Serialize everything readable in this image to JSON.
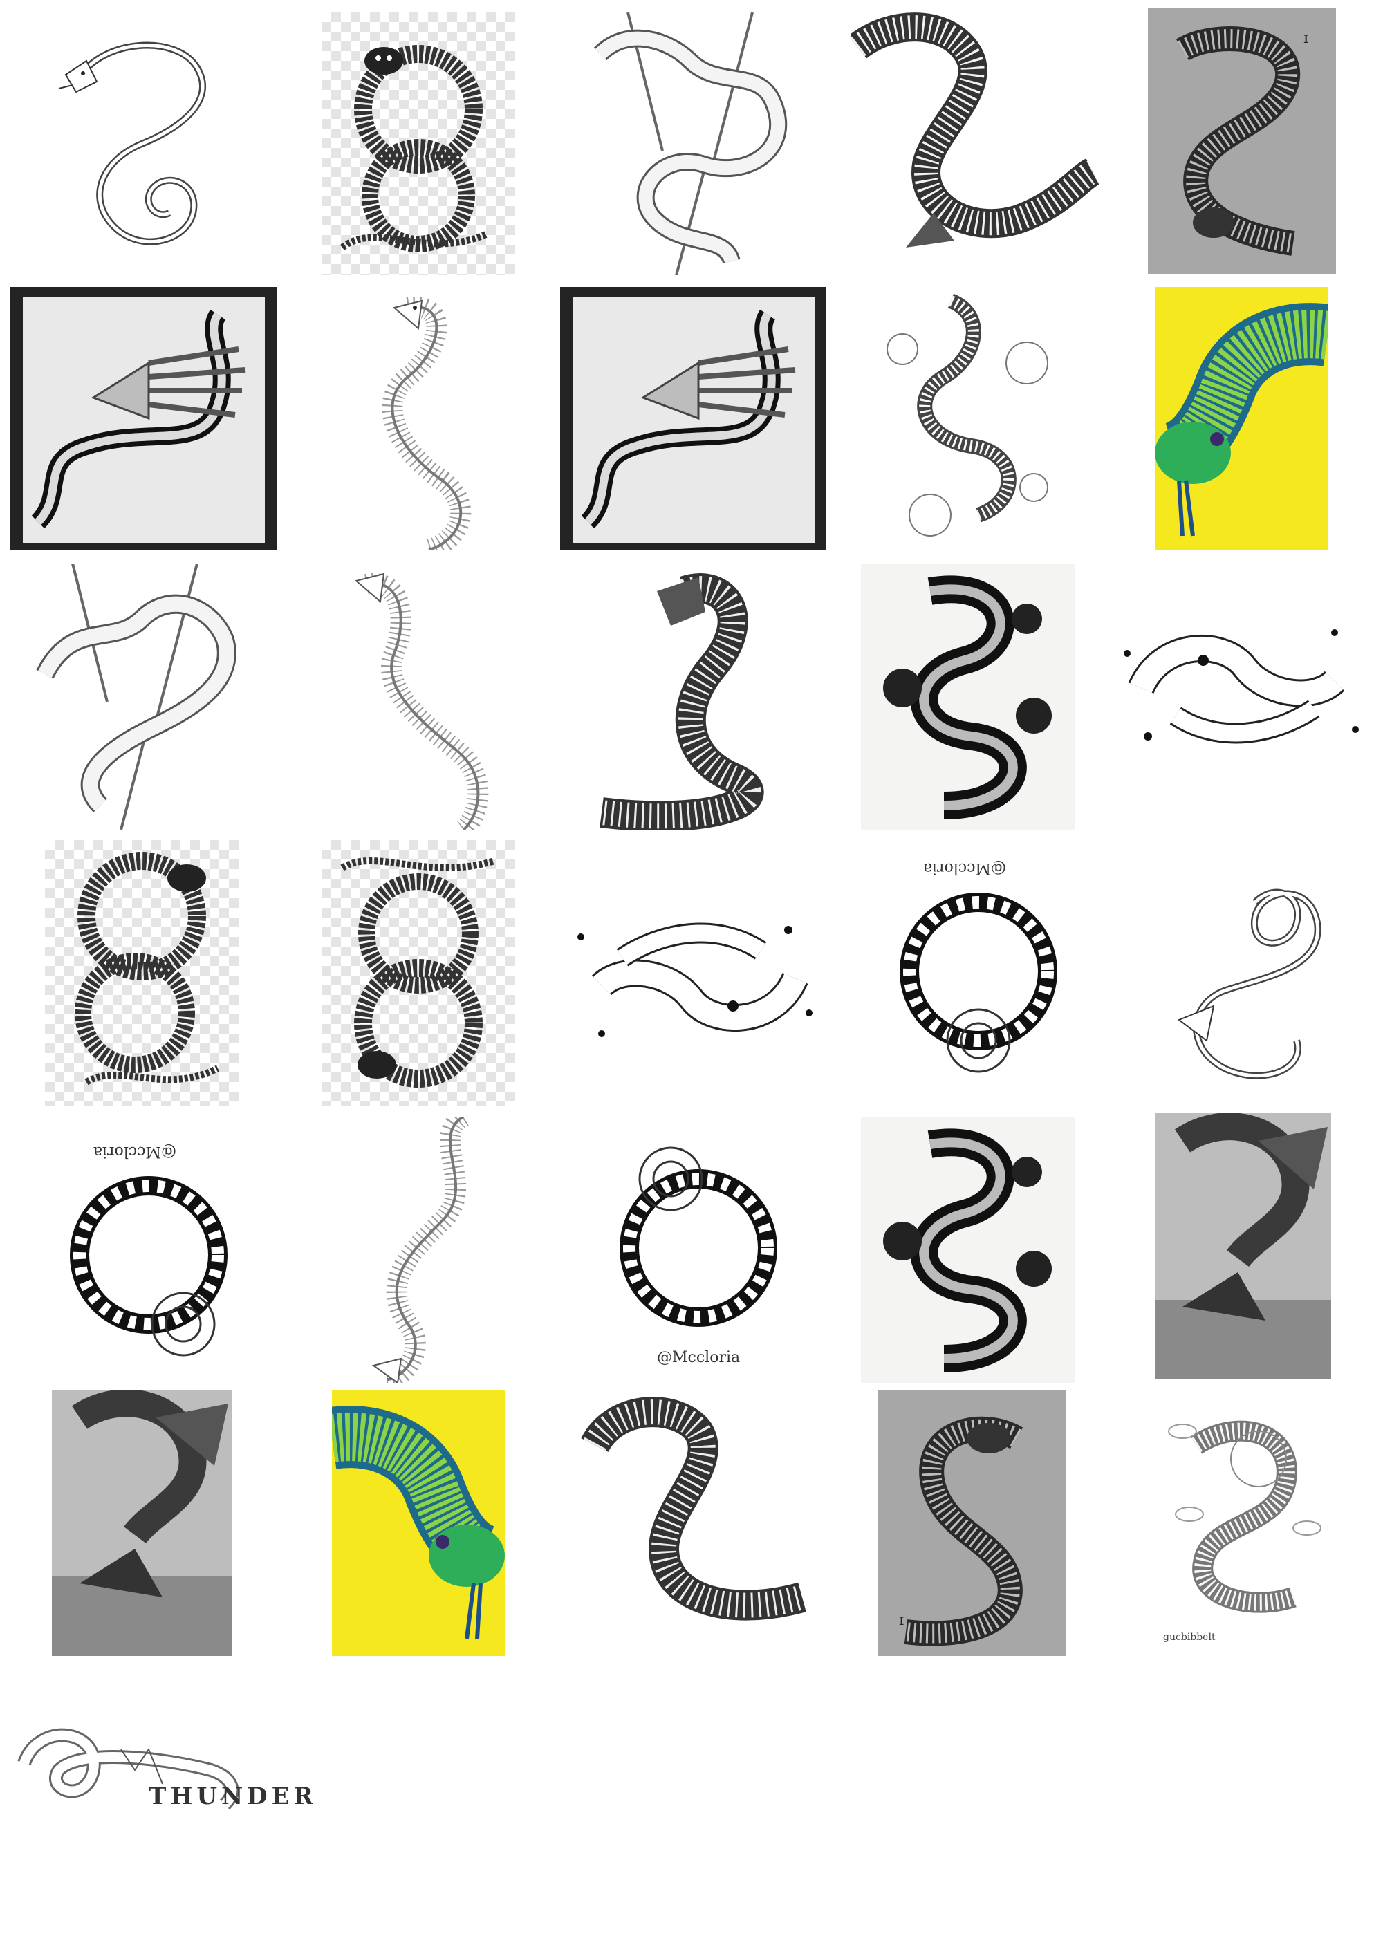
{
  "gallery": {
    "tiles": [
      {
        "subject": "snake-spiral-sketch"
      },
      {
        "subject": "snake-ouroboros-transparent"
      },
      {
        "subject": "snakes-on-branches"
      },
      {
        "subject": "cobra-s-curve"
      },
      {
        "subject": "snake-grey-paper"
      },
      {
        "subject": "snake-skeleton-hands"
      },
      {
        "subject": "snake-skeleton-lineart"
      },
      {
        "subject": "snake-skeleton-hands-copy"
      },
      {
        "subject": "snake-flowers"
      },
      {
        "subject": "green-snake-yellow"
      },
      {
        "subject": "snakes-on-branches-2"
      },
      {
        "subject": "snake-skeleton-lineart-2"
      },
      {
        "subject": "cobra-striking"
      },
      {
        "subject": "snake-black-roses"
      },
      {
        "subject": "snake-minimal-dots"
      },
      {
        "subject": "snake-ouroboros-2"
      },
      {
        "subject": "snake-ouroboros-3"
      },
      {
        "subject": "snake-minimal-dots-2"
      },
      {
        "subject": "snake-roses-circle"
      },
      {
        "subject": "snake-spiral-sketch-2"
      },
      {
        "subject": "snake-roses-circle-2"
      },
      {
        "subject": "snake-skeleton-lineart-3"
      },
      {
        "subject": "snake-roses-circle-3"
      },
      {
        "subject": "snake-black-roses-2"
      },
      {
        "subject": "winged-snake-photo"
      },
      {
        "subject": "winged-snake-photo-2"
      },
      {
        "subject": "green-snake-yellow-2"
      },
      {
        "subject": "cobra-s-curve-2"
      },
      {
        "subject": "snake-grey-paper-2"
      },
      {
        "subject": "snake-apple-sketch"
      },
      {
        "subject": "thunder-snake-sketch"
      }
    ],
    "signature": "gucbibbelt",
    "thunder_label": "THUNDER"
  },
  "colors": {
    "yellow": "#f6e81f",
    "green": "#2fae5a",
    "teal": "#1d6a8a",
    "ink": "#1a1a1a"
  }
}
